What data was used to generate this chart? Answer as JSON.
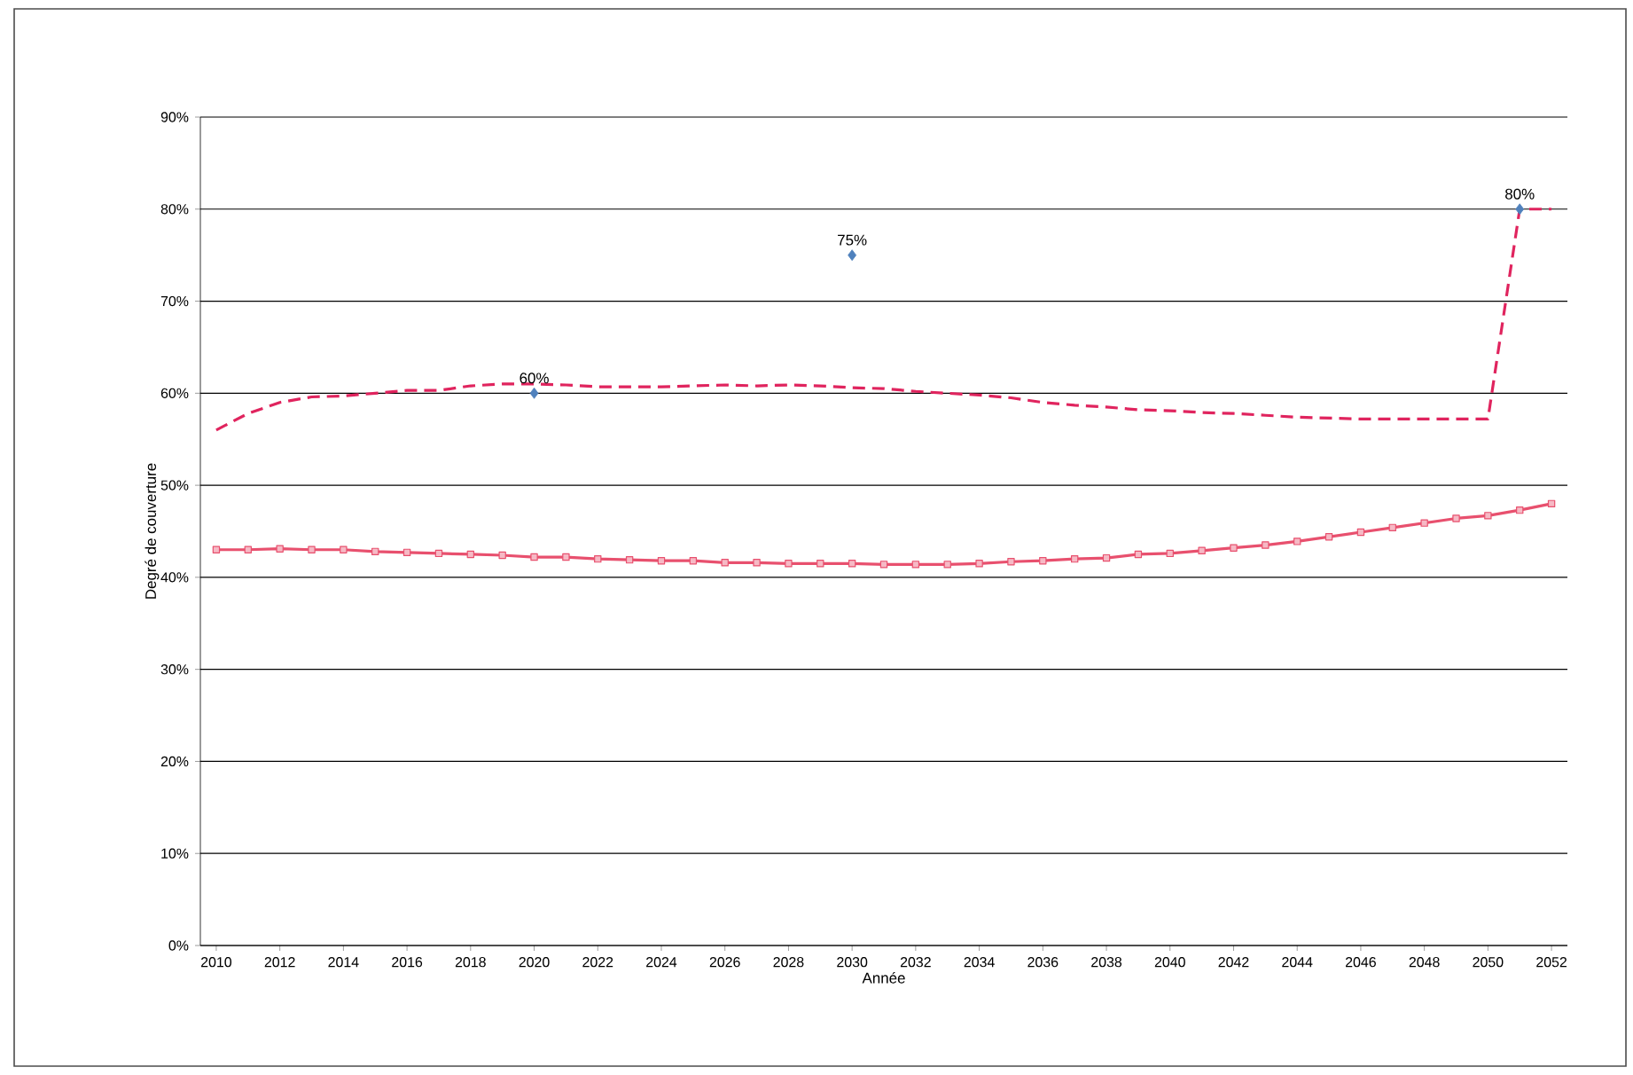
{
  "chart_data": {
    "type": "line",
    "xlabel": "Année",
    "ylabel": "Degré de couverture",
    "x": [
      2010,
      2011,
      2012,
      2013,
      2014,
      2015,
      2016,
      2017,
      2018,
      2019,
      2020,
      2021,
      2022,
      2023,
      2024,
      2025,
      2026,
      2027,
      2028,
      2029,
      2030,
      2031,
      2032,
      2033,
      2034,
      2035,
      2036,
      2037,
      2038,
      2039,
      2040,
      2041,
      2042,
      2043,
      2044,
      2045,
      2046,
      2047,
      2048,
      2049,
      2050,
      2051,
      2052
    ],
    "series": [
      {
        "color": "#e0245e",
        "line_style": "dashed",
        "marker": "none",
        "values": [
          56.0,
          57.8,
          59.0,
          59.6,
          59.7,
          60.0,
          60.3,
          60.3,
          60.8,
          61.0,
          61.0,
          60.9,
          60.7,
          60.7,
          60.7,
          60.8,
          60.9,
          60.8,
          60.9,
          60.8,
          60.6,
          60.5,
          60.2,
          60.0,
          59.8,
          59.5,
          59.0,
          58.7,
          58.5,
          58.2,
          58.1,
          57.9,
          57.8,
          57.6,
          57.4,
          57.3,
          57.2,
          57.2,
          57.2,
          57.2,
          57.2,
          80,
          80
        ]
      },
      {
        "color": "#e8506e",
        "line_style": "solid",
        "marker": "square",
        "values": [
          43.0,
          43.0,
          43.1,
          43.0,
          43.0,
          42.8,
          42.7,
          42.6,
          42.5,
          42.4,
          42.2,
          42.2,
          42.0,
          41.9,
          41.8,
          41.8,
          41.6,
          41.6,
          41.5,
          41.5,
          41.5,
          41.4,
          41.4,
          41.4,
          41.5,
          41.7,
          41.8,
          42.0,
          42.1,
          42.5,
          42.6,
          42.9,
          43.2,
          43.5,
          43.9,
          44.4,
          44.9,
          45.4,
          45.9,
          46.4,
          46.7,
          47.3,
          48.0
        ]
      },
      {
        "type": "scatter",
        "color": "#4f81bd",
        "marker": "diamond",
        "x": [
          2020,
          2030,
          2051
        ],
        "values": [
          60,
          75,
          80
        ],
        "value_labels": [
          "60%",
          "75%",
          "80%"
        ]
      }
    ],
    "xlim": [
      2009.5,
      2052.5
    ],
    "xticks": [
      2010,
      2012,
      2014,
      2016,
      2018,
      2020,
      2022,
      2024,
      2026,
      2028,
      2030,
      2032,
      2034,
      2036,
      2038,
      2040,
      2042,
      2044,
      2046,
      2048,
      2050,
      2052
    ],
    "ylim": [
      0,
      90
    ],
    "yticks": [
      {
        "value": 0,
        "label": "0%"
      },
      {
        "value": 10,
        "label": "10%"
      },
      {
        "value": 20,
        "label": "20%"
      },
      {
        "value": 30,
        "label": "30%"
      },
      {
        "value": 40,
        "label": "40%"
      },
      {
        "value": 50,
        "label": "50%"
      },
      {
        "value": 60,
        "label": "60%"
      },
      {
        "value": 70,
        "label": "70%"
      },
      {
        "value": 80,
        "label": "80%"
      },
      {
        "value": 90,
        "label": "90%"
      }
    ],
    "grid": "y"
  }
}
